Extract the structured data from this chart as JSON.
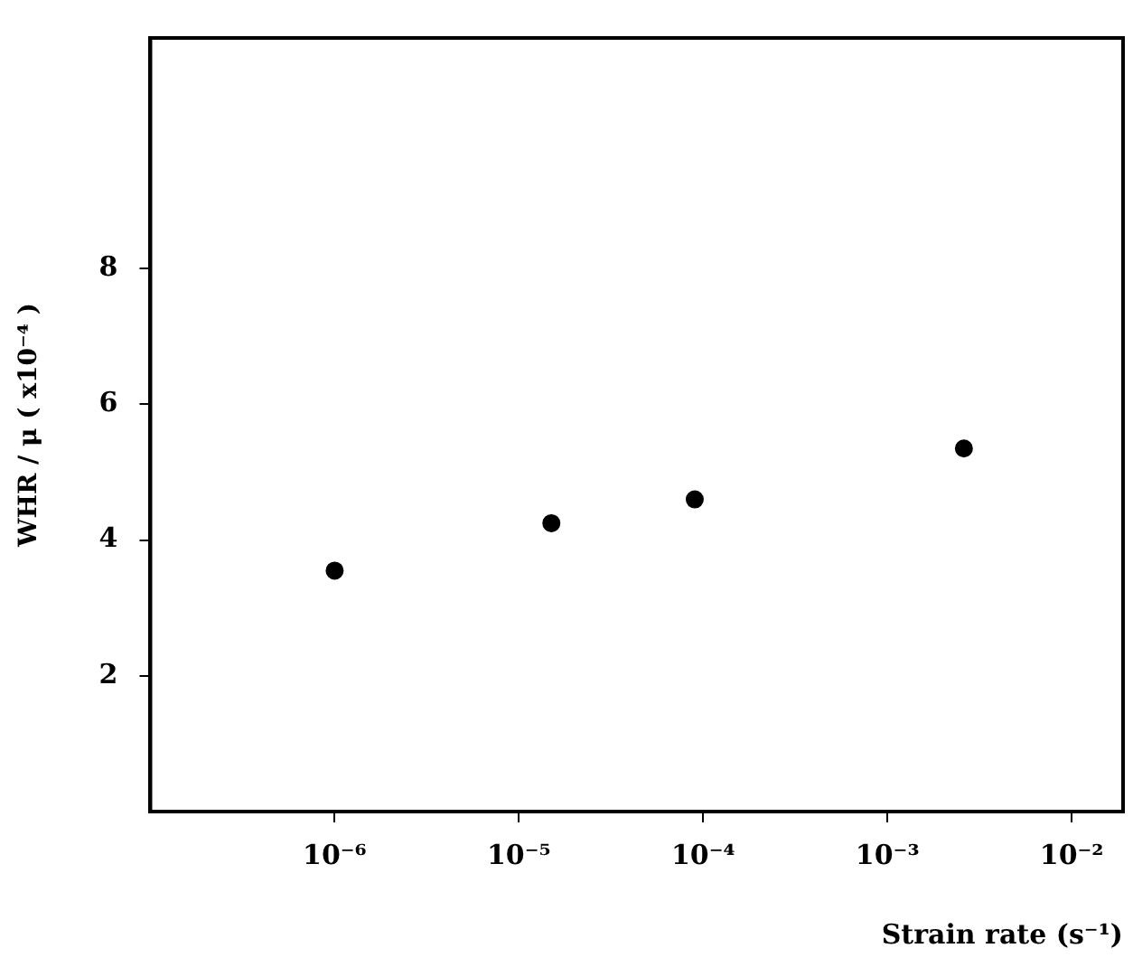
{
  "chart_data": {
    "type": "scatter",
    "xlabel": "Strain rate (s⁻¹)",
    "ylabel": "WHR / μ ( x10⁻⁴ )",
    "x": [
      1e-06,
      1.5e-05,
      9e-05,
      0.0026
    ],
    "series": [
      {
        "color": "#000000",
        "values": [
          3.55,
          4.25,
          4.6,
          5.35
        ]
      }
    ],
    "log": "x",
    "xlim": [
      1e-07,
      0.019
    ],
    "xticks": [
      {
        "value": 1e-06,
        "label": "10⁻⁶"
      },
      {
        "value": 1e-05,
        "label": "10⁻⁵"
      },
      {
        "value": 0.0001,
        "label": "10⁻⁴"
      },
      {
        "value": 0.001,
        "label": "10⁻³"
      },
      {
        "value": 0.01,
        "label": "10⁻²"
      }
    ],
    "ylim": [
      0,
      11.4
    ],
    "yticks": [
      2,
      4,
      6,
      8
    ],
    "grid": false,
    "legend": false,
    "marker": "circle"
  }
}
